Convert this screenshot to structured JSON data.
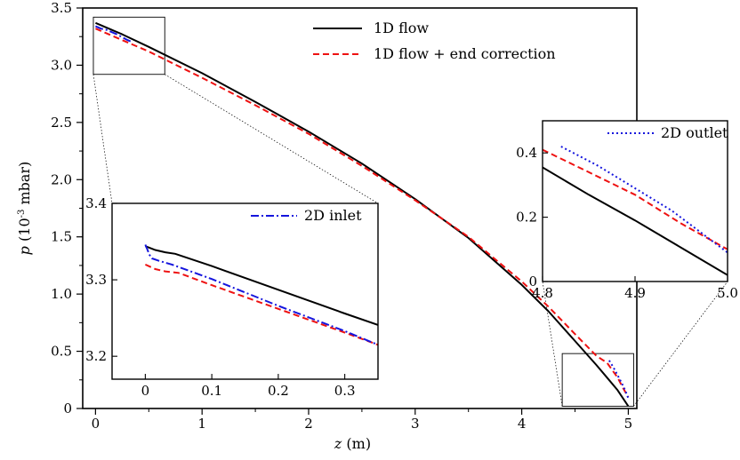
{
  "chart_data": [
    {
      "id": "main",
      "type": "line",
      "xlabel": "z",
      "xunit": "(m)",
      "ylabel_var": "p",
      "ylabel_pre": "(10",
      "ylabel_exp": "-3",
      "ylabel_post": " mbar)",
      "xlim": [
        -0.12,
        5.08
      ],
      "ylim": [
        0,
        3.5
      ],
      "xticks": [
        "0",
        "1",
        "2",
        "3",
        "4",
        "5"
      ],
      "yticks": [
        "0",
        "0.5",
        "1.0",
        "1.5",
        "2.0",
        "2.5",
        "3.0",
        "3.5"
      ],
      "legend": "top-center",
      "series": [
        {
          "name": "1D flow",
          "color": "#000000",
          "style": "solid",
          "x": [
            0,
            0.25,
            0.5,
            1.0,
            1.5,
            2.0,
            2.5,
            3.0,
            3.5,
            4.0,
            4.25,
            4.5,
            4.7,
            4.8,
            4.9,
            4.95,
            5.0
          ],
          "y": [
            3.37,
            3.27,
            3.16,
            2.93,
            2.68,
            2.42,
            2.14,
            1.83,
            1.49,
            1.08,
            0.85,
            0.59,
            0.38,
            0.27,
            0.16,
            0.09,
            0.02
          ]
        },
        {
          "name": "1D flow + end correction",
          "color": "#ee1111",
          "style": "dashed",
          "x": [
            0,
            0.25,
            0.5,
            1.0,
            1.5,
            2.0,
            2.5,
            3.0,
            3.5,
            4.0,
            4.25,
            4.5,
            4.7,
            4.8,
            4.9,
            4.95,
            5.0
          ],
          "y": [
            3.32,
            3.22,
            3.12,
            2.89,
            2.65,
            2.4,
            2.12,
            1.82,
            1.5,
            1.11,
            0.89,
            0.65,
            0.46,
            0.4,
            0.27,
            0.18,
            0.1
          ]
        },
        {
          "name": "2D inlet",
          "color": "#1515dd",
          "style": "dashdot",
          "x": [
            0,
            0.05,
            0.1,
            0.2,
            0.3,
            0.35
          ],
          "y": [
            3.34,
            3.32,
            3.31,
            3.27,
            3.22,
            3.2
          ]
        },
        {
          "name": "2D outlet",
          "color": "#1515dd",
          "style": "dotted",
          "x": [
            4.82,
            4.86,
            4.9,
            4.94,
            4.97,
            5.0
          ],
          "y": [
            0.42,
            0.36,
            0.29,
            0.22,
            0.16,
            0.09
          ]
        }
      ],
      "zoom_boxes": [
        {
          "target": "inset_inlet",
          "x": [
            -0.02,
            0.65
          ],
          "y": [
            2.92,
            3.42
          ]
        },
        {
          "target": "inset_outlet",
          "x": [
            4.38,
            5.05
          ],
          "y": [
            0.02,
            0.48
          ]
        }
      ]
    },
    {
      "id": "inset_inlet",
      "type": "line",
      "xlim": [
        -0.05,
        0.35
      ],
      "ylim": [
        3.17,
        3.4
      ],
      "xticks": [
        "0",
        "0.1",
        "0.2",
        "0.3"
      ],
      "yticks": [
        "3.2",
        "3.3",
        "3.4"
      ],
      "legend": "top-right",
      "series": [
        {
          "name": "",
          "color": "#000000",
          "style": "solid",
          "x": [
            0,
            0.015,
            0.03,
            0.045,
            0.1,
            0.2,
            0.3,
            0.35
          ],
          "y": [
            3.344,
            3.339,
            3.336,
            3.334,
            3.318,
            3.287,
            3.256,
            3.241
          ]
        },
        {
          "name": "",
          "color": "#ee1111",
          "style": "dashed",
          "x": [
            0,
            0.015,
            0.03,
            0.05,
            0.1,
            0.2,
            0.3,
            0.35
          ],
          "y": [
            3.32,
            3.314,
            3.311,
            3.309,
            3.293,
            3.262,
            3.231,
            3.215
          ]
        },
        {
          "name": "2D inlet",
          "color": "#1515dd",
          "style": "dashdot",
          "x": [
            0,
            0.003,
            0.006,
            0.01,
            0.02,
            0.04,
            0.1,
            0.2,
            0.3,
            0.35
          ],
          "y": [
            3.346,
            3.34,
            3.333,
            3.328,
            3.325,
            3.32,
            3.301,
            3.266,
            3.233,
            3.215
          ]
        }
      ]
    },
    {
      "id": "inset_outlet",
      "type": "line",
      "xlim": [
        4.8,
        5.0
      ],
      "ylim": [
        0,
        0.5
      ],
      "xticks": [
        "4.8",
        "4.9",
        "5.0"
      ],
      "yticks": [
        "0",
        "0.2",
        "0.4"
      ],
      "legend": "top-right",
      "series": [
        {
          "name": "",
          "color": "#000000",
          "style": "solid",
          "x": [
            4.8,
            4.85,
            4.9,
            4.95,
            5.0
          ],
          "y": [
            0.355,
            0.27,
            0.19,
            0.105,
            0.02
          ]
        },
        {
          "name": "",
          "color": "#ee1111",
          "style": "dashed",
          "x": [
            4.8,
            4.85,
            4.9,
            4.95,
            5.0
          ],
          "y": [
            0.41,
            0.34,
            0.27,
            0.18,
            0.1
          ]
        },
        {
          "name": "2D outlet",
          "color": "#1515dd",
          "style": "dotted",
          "x": [
            4.82,
            4.86,
            4.9,
            4.94,
            5.0
          ],
          "y": [
            0.42,
            0.36,
            0.29,
            0.22,
            0.09
          ]
        }
      ]
    }
  ]
}
